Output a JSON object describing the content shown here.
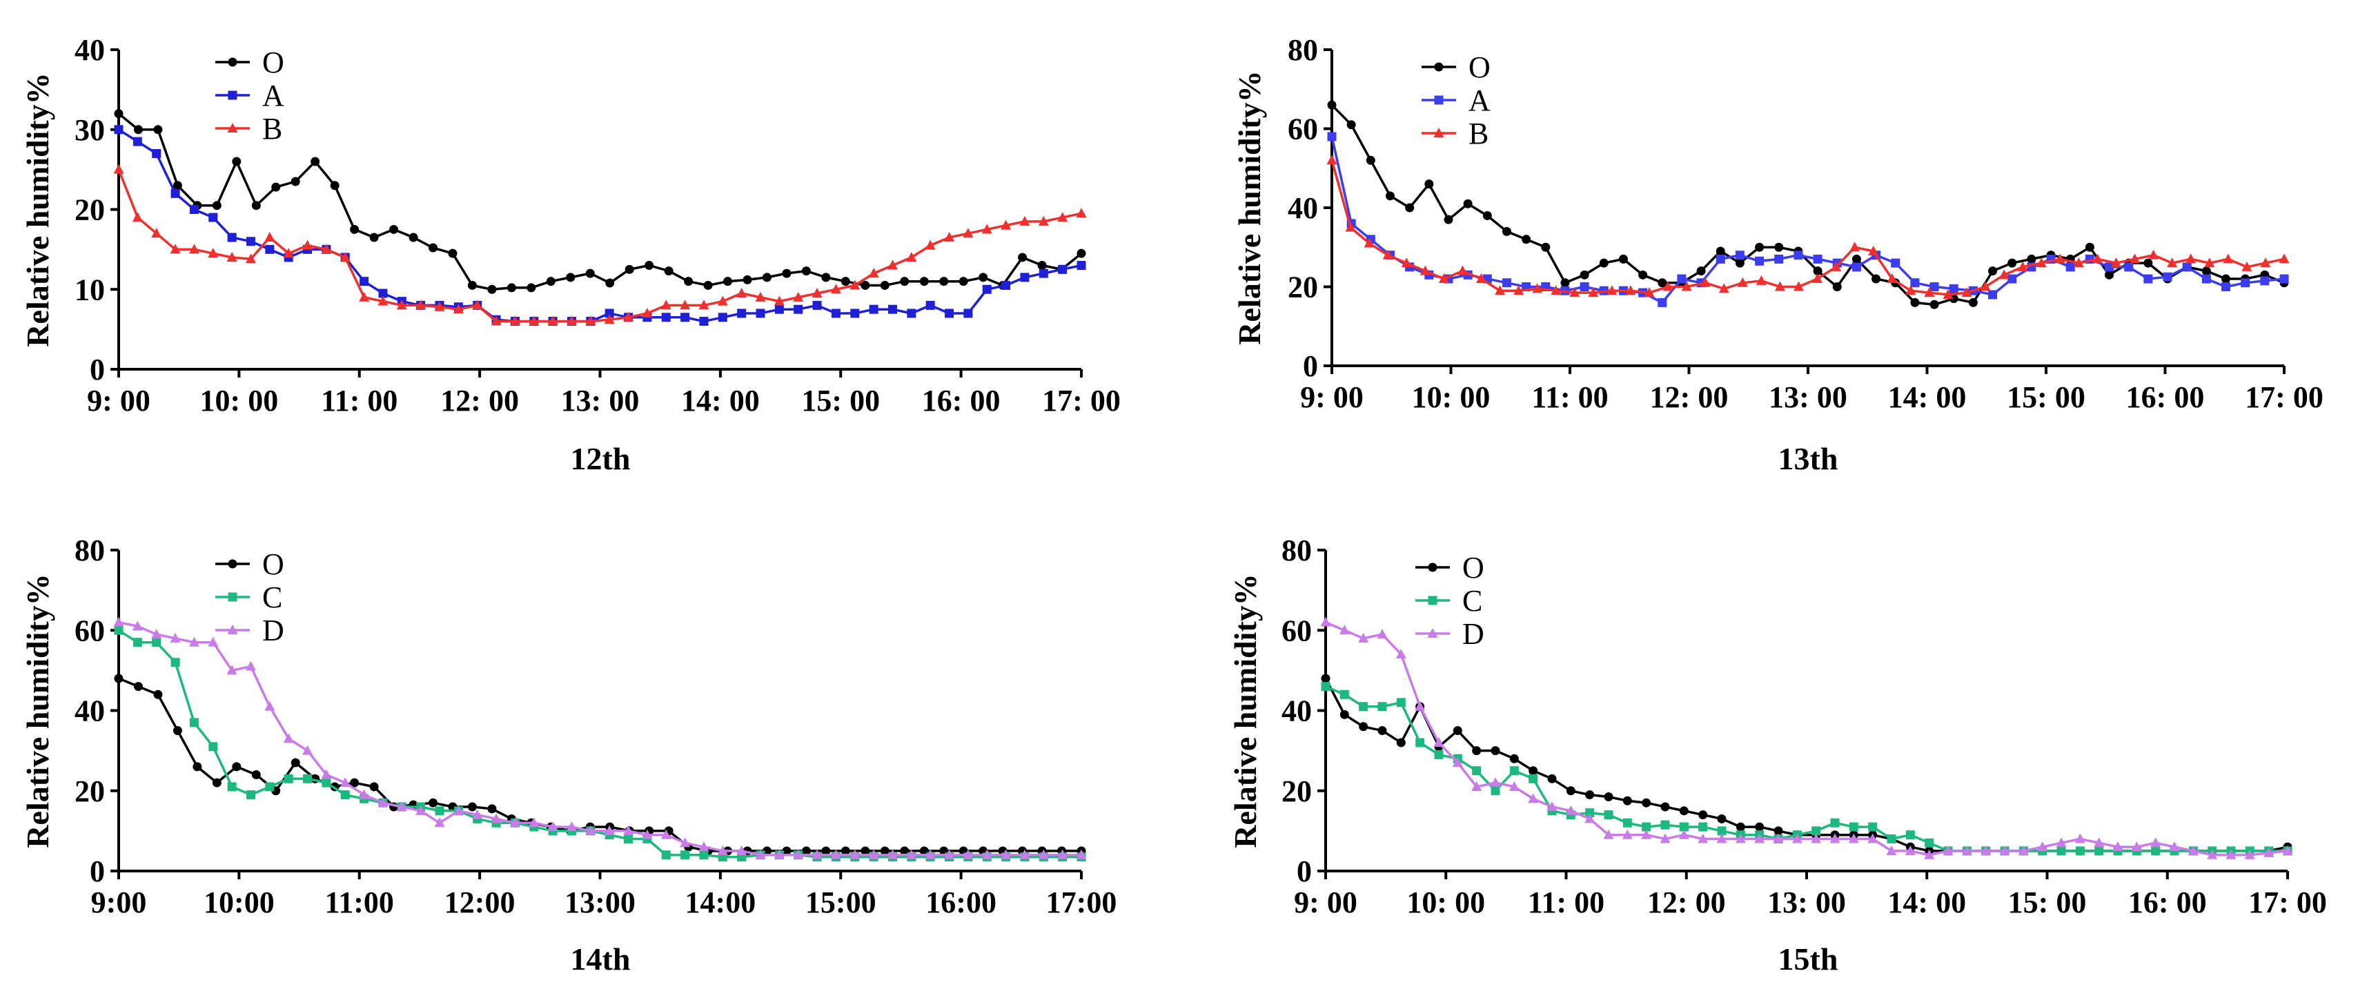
{
  "chart_data": [
    {
      "type": "line",
      "title": "",
      "xlabel": "12th",
      "ylabel": "Relative humidity%",
      "ylim": [
        0,
        40
      ],
      "yticks": [
        0,
        10,
        20,
        30,
        40
      ],
      "x_tick_labels": [
        "9: 00",
        "10: 00",
        "11: 00",
        "12: 00",
        "13: 00",
        "14: 00",
        "15: 00",
        "16: 00",
        "17: 00"
      ],
      "xlim": [
        0,
        8
      ],
      "legend_position": "top-left",
      "series": [
        {
          "name": "O",
          "color": "#000000",
          "marker": "circle",
          "values": [
            32,
            30,
            30,
            23,
            20.5,
            20.5,
            26,
            20.5,
            22.8,
            23.5,
            26,
            23,
            17.5,
            16.5,
            17.5,
            16.5,
            15.2,
            14.5,
            10.5,
            10,
            10.2,
            10.2,
            11,
            11.5,
            12,
            10.8,
            12.5,
            13,
            12.3,
            11,
            10.5,
            11,
            11.2,
            11.5,
            12,
            12.3,
            11.5,
            11,
            10.5,
            10.5,
            11,
            11,
            11,
            11,
            11.5,
            10.5,
            14,
            13,
            12.5,
            14.5
          ]
        },
        {
          "name": "A",
          "color": "#1f1fd6",
          "marker": "square",
          "values": [
            30,
            28.5,
            27,
            22,
            20,
            19,
            16.5,
            16,
            15,
            14,
            15,
            15,
            14,
            11,
            9.5,
            8.5,
            8,
            8,
            7.8,
            8,
            6.2,
            6,
            6,
            6,
            6,
            6,
            7,
            6.5,
            6.5,
            6.5,
            6.5,
            6,
            6.5,
            7,
            7,
            7.5,
            7.5,
            8,
            7,
            7,
            7.5,
            7.5,
            7,
            8,
            7,
            7,
            10,
            10.5,
            11.5,
            12,
            12.5,
            13
          ]
        },
        {
          "name": "B",
          "color": "#f0302e",
          "marker": "triangle",
          "values": [
            25,
            19,
            17,
            15,
            15,
            14.5,
            14,
            13.8,
            16.5,
            14.5,
            15.5,
            15,
            14,
            9,
            8.5,
            8,
            8,
            7.8,
            7.5,
            8,
            6,
            6,
            6,
            6,
            6,
            6,
            6.2,
            6.5,
            7,
            8,
            8,
            8,
            8.5,
            9.5,
            9,
            8.5,
            9,
            9.5,
            10,
            10.5,
            12,
            13,
            14,
            15.5,
            16.5,
            17,
            17.5,
            18,
            18.5,
            18.5,
            19,
            19.5
          ]
        }
      ]
    },
    {
      "type": "line",
      "title": "",
      "xlabel": "13th",
      "ylabel": "Relative humidity%",
      "ylim": [
        0,
        80
      ],
      "yticks": [
        0,
        20,
        40,
        60,
        80
      ],
      "x_tick_labels": [
        "9: 00",
        "10: 00",
        "11: 00",
        "12: 00",
        "13: 00",
        "14: 00",
        "15: 00",
        "16: 00",
        "17: 00"
      ],
      "xlim": [
        0,
        8
      ],
      "legend_position": "top-left",
      "series": [
        {
          "name": "O",
          "color": "#000000",
          "marker": "circle",
          "values": [
            66,
            61,
            52,
            43,
            40,
            46,
            37,
            41,
            38,
            34,
            32,
            30,
            21,
            23,
            26,
            27,
            23,
            21,
            21,
            24,
            29,
            26,
            30,
            30,
            29,
            24,
            20,
            27,
            22,
            21,
            16,
            15.5,
            17,
            16,
            24,
            26,
            27,
            28,
            27,
            30,
            23,
            26,
            26,
            22,
            25,
            24,
            22,
            22,
            23,
            21
          ]
        },
        {
          "name": "A",
          "color": "#3c3cf0",
          "marker": "square",
          "values": [
            58,
            36,
            32,
            28,
            25,
            23,
            22,
            23,
            22,
            21,
            20,
            20,
            19,
            20,
            19,
            19,
            18.5,
            16,
            22,
            21,
            27,
            28,
            26.5,
            27,
            28,
            27,
            26,
            25,
            28,
            26,
            21,
            20,
            19.5,
            19,
            18,
            22,
            25,
            27,
            25,
            27,
            25,
            25,
            22,
            22.5,
            25,
            22,
            20,
            21,
            21.5,
            22
          ]
        },
        {
          "name": "B",
          "color": "#f0302e",
          "marker": "triangle",
          "values": [
            52,
            35,
            31,
            28,
            26,
            24,
            22,
            24,
            22,
            19,
            19,
            19.5,
            19,
            18.5,
            18.5,
            19,
            19,
            18.5,
            20,
            20,
            21,
            19.5,
            21,
            21.5,
            20,
            20,
            22,
            25,
            30,
            29,
            22,
            19,
            18.5,
            18,
            18.5,
            20,
            23,
            25,
            26,
            27,
            26,
            27,
            26,
            27,
            28,
            26,
            27,
            26,
            27,
            25,
            26,
            27
          ]
        }
      ]
    },
    {
      "type": "line",
      "title": "",
      "xlabel": "14th",
      "ylabel": "Relative humidity%",
      "ylim": [
        0,
        80
      ],
      "yticks": [
        0,
        20,
        40,
        60,
        80
      ],
      "x_tick_labels": [
        "9:00",
        "10:00",
        "11:00",
        "12:00",
        "13:00",
        "14:00",
        "15:00",
        "16:00",
        "17:00"
      ],
      "xlim": [
        0,
        8
      ],
      "legend_position": "top-left",
      "series": [
        {
          "name": "O",
          "color": "#000000",
          "marker": "circle",
          "values": [
            48,
            46,
            44,
            35,
            26,
            22,
            26,
            24,
            20,
            27,
            23,
            21,
            22,
            21,
            16,
            16.5,
            17,
            16,
            16,
            15.5,
            13,
            12,
            11,
            10,
            11,
            11,
            10,
            10,
            10,
            6,
            5,
            5,
            5,
            5,
            5,
            5,
            5,
            5,
            5,
            5,
            5,
            5,
            5,
            5,
            5,
            5,
            5,
            5,
            5,
            5
          ]
        },
        {
          "name": "C",
          "color": "#1db87e",
          "marker": "square",
          "values": [
            60,
            57,
            57,
            52,
            37,
            31,
            21,
            19,
            21,
            23,
            23,
            22,
            19,
            18,
            17,
            16,
            16,
            15,
            15,
            13,
            12,
            12,
            11,
            10,
            10,
            10,
            9,
            8,
            8,
            4,
            4,
            4,
            3.5,
            3.5,
            4,
            4,
            4,
            3.5,
            3.5,
            3.5,
            3.5,
            3.5,
            3.5,
            3.5,
            3.5,
            3.5,
            3.5,
            3.5,
            3.5,
            3.5,
            3.5,
            3.5
          ]
        },
        {
          "name": "D",
          "color": "#c97be8",
          "marker": "triangle",
          "values": [
            62,
            61,
            59,
            58,
            57,
            57,
            50,
            51,
            41,
            33,
            30,
            24,
            22,
            19,
            17,
            16,
            15,
            12,
            15,
            14,
            13,
            12,
            12,
            11,
            11,
            10,
            10,
            10,
            9,
            9,
            7,
            6,
            5,
            5,
            4,
            4,
            4,
            4,
            4,
            4,
            4,
            4,
            4,
            4,
            4,
            4,
            4,
            4,
            4,
            4,
            4,
            4
          ]
        }
      ]
    },
    {
      "type": "line",
      "title": "",
      "xlabel": "15th",
      "ylabel": "Relative humidity%",
      "ylim": [
        0,
        80
      ],
      "yticks": [
        0,
        20,
        40,
        60,
        80
      ],
      "x_tick_labels": [
        "9: 00",
        "10: 00",
        "11: 00",
        "12: 00",
        "13: 00",
        "14: 00",
        "15: 00",
        "16: 00",
        "17: 00"
      ],
      "xlim": [
        0,
        8
      ],
      "legend_position": "top-left",
      "series": [
        {
          "name": "O",
          "color": "#000000",
          "marker": "circle",
          "values": [
            48,
            39,
            36,
            35,
            32,
            41,
            31,
            35,
            30,
            30,
            28,
            25,
            23,
            20,
            19,
            18.5,
            17.5,
            17,
            16,
            15,
            14,
            13,
            11,
            11,
            10,
            9,
            9,
            9,
            9,
            9,
            8,
            6,
            5,
            5,
            5,
            5,
            5,
            5,
            5,
            5,
            5,
            5,
            5,
            5,
            5,
            5,
            5,
            5,
            5,
            5,
            5,
            6
          ]
        },
        {
          "name": "C",
          "color": "#1db87e",
          "marker": "square",
          "values": [
            46,
            44,
            41,
            41,
            42,
            32,
            29,
            28,
            25,
            20,
            25,
            23,
            15,
            14,
            14.5,
            14,
            12,
            11,
            11.5,
            11,
            11,
            10,
            9,
            9,
            8,
            9,
            10,
            12,
            11,
            11,
            8,
            9,
            7,
            5,
            5,
            5,
            5,
            5,
            5,
            5,
            5,
            5,
            5,
            5,
            5,
            5,
            5,
            5,
            5,
            5,
            5,
            5
          ]
        },
        {
          "name": "D",
          "color": "#c97be8",
          "marker": "triangle",
          "values": [
            62,
            60,
            58,
            59,
            54,
            41,
            32,
            27,
            21,
            22,
            21,
            18,
            16,
            15,
            13,
            9,
            9,
            9,
            8,
            9,
            8,
            8,
            8,
            8,
            8,
            8,
            8,
            8,
            8,
            8,
            5,
            5,
            4,
            5,
            5,
            5,
            5,
            5,
            6,
            7,
            8,
            7,
            6,
            6,
            7,
            6,
            5,
            4,
            4,
            4,
            4.5,
            5
          ]
        }
      ]
    }
  ]
}
